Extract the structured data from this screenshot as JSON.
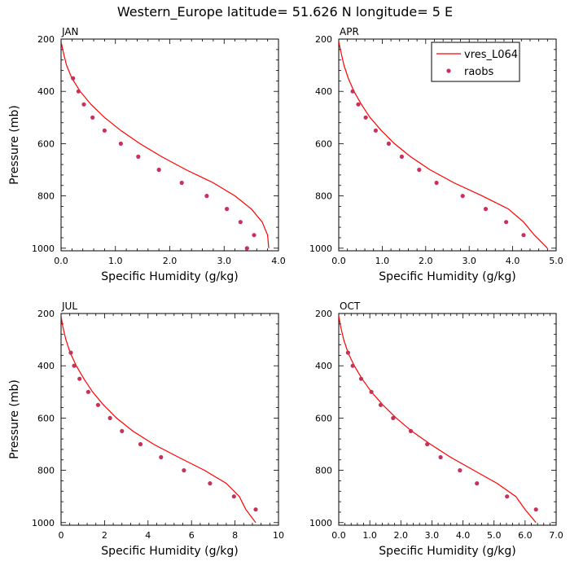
{
  "title": "Western_Europe  latitude= 51.626 N longitude= 5 E",
  "legend": {
    "model_label": "vres_L064",
    "obs_label": "raobs",
    "placement": "top-right of APR panel"
  },
  "colors": {
    "model_line": "#ff0000",
    "obs_marker": "#c8325a",
    "axes": "#000000"
  },
  "chart_data": [
    {
      "type": "line",
      "panel_label": "JAN",
      "xlabel": "Specific Humidity (g/kg)",
      "ylabel": "Pressure (mb)",
      "xlim": [
        0,
        4
      ],
      "ylim": [
        200,
        1010
      ],
      "y_inverted": true,
      "xticks": [
        0,
        1,
        2,
        3,
        4
      ],
      "xtick_labels": [
        "0.0",
        "1.0",
        "2.0",
        "3.0",
        "4.0"
      ],
      "yticks": [
        200,
        400,
        600,
        800,
        1000
      ],
      "ytick_labels": [
        "200",
        "400",
        "600",
        "800",
        "1000"
      ],
      "series": [
        {
          "name": "vres_L064",
          "kind": "line",
          "x": [
            0.0,
            0.04,
            0.1,
            0.2,
            0.35,
            0.55,
            0.8,
            1.1,
            1.45,
            1.85,
            2.3,
            2.8,
            3.2,
            3.5,
            3.7,
            3.8,
            3.82
          ],
          "y": [
            210,
            250,
            300,
            350,
            400,
            450,
            500,
            550,
            600,
            650,
            700,
            750,
            800,
            850,
            900,
            950,
            1000
          ]
        },
        {
          "name": "raobs",
          "kind": "scatter",
          "x": [
            0.22,
            0.32,
            0.42,
            0.58,
            0.8,
            1.1,
            1.42,
            1.8,
            2.22,
            2.68,
            3.05,
            3.3,
            3.55,
            3.42
          ],
          "y": [
            350,
            400,
            450,
            500,
            550,
            600,
            650,
            700,
            750,
            800,
            850,
            900,
            950,
            1000
          ]
        }
      ]
    },
    {
      "type": "line",
      "panel_label": "APR",
      "xlabel": "Specific Humidity (g/kg)",
      "ylabel": "",
      "xlim": [
        0,
        5
      ],
      "ylim": [
        200,
        1010
      ],
      "y_inverted": true,
      "xticks": [
        0,
        1,
        2,
        3,
        4,
        5
      ],
      "xtick_labels": [
        "0.0",
        "1.0",
        "2.0",
        "3.0",
        "4.0",
        "5.0"
      ],
      "yticks": [
        200,
        400,
        600,
        800,
        1000
      ],
      "ytick_labels": [
        "200",
        "400",
        "600",
        "800",
        "1000"
      ],
      "series": [
        {
          "name": "vres_L064",
          "kind": "line",
          "x": [
            0.0,
            0.05,
            0.12,
            0.22,
            0.35,
            0.52,
            0.72,
            0.98,
            1.28,
            1.65,
            2.1,
            2.65,
            3.3,
            3.9,
            4.25,
            4.5,
            4.8
          ],
          "y": [
            210,
            250,
            300,
            350,
            400,
            450,
            500,
            550,
            600,
            650,
            700,
            750,
            800,
            850,
            900,
            950,
            1000
          ]
        },
        {
          "name": "raobs",
          "kind": "scatter",
          "x": [
            0.32,
            0.45,
            0.62,
            0.85,
            1.15,
            1.45,
            1.85,
            2.25,
            2.85,
            3.38,
            3.85,
            4.25
          ],
          "y": [
            400,
            450,
            500,
            550,
            600,
            650,
            700,
            750,
            800,
            850,
            900,
            950
          ]
        }
      ]
    },
    {
      "type": "line",
      "panel_label": "JUL",
      "xlabel": "Specific Humidity (g/kg)",
      "ylabel": "Pressure (mb)",
      "xlim": [
        0,
        10
      ],
      "ylim": [
        200,
        1010
      ],
      "y_inverted": true,
      "xticks": [
        0,
        2,
        4,
        6,
        8,
        10
      ],
      "xtick_labels": [
        "0",
        "2",
        "4",
        "6",
        "8",
        "10"
      ],
      "yticks": [
        200,
        400,
        600,
        800,
        1000
      ],
      "ytick_labels": [
        "200",
        "400",
        "600",
        "800",
        "1000"
      ],
      "series": [
        {
          "name": "vres_L064",
          "kind": "line",
          "x": [
            0.0,
            0.08,
            0.22,
            0.42,
            0.7,
            1.05,
            1.45,
            1.95,
            2.55,
            3.3,
            4.25,
            5.4,
            6.6,
            7.6,
            8.2,
            8.5,
            8.95
          ],
          "y": [
            210,
            250,
            300,
            350,
            400,
            450,
            500,
            550,
            600,
            650,
            700,
            750,
            800,
            850,
            900,
            950,
            1000
          ]
        },
        {
          "name": "raobs",
          "kind": "scatter",
          "x": [
            0.45,
            0.6,
            0.85,
            1.25,
            1.7,
            2.25,
            2.8,
            3.65,
            4.6,
            5.65,
            6.85,
            7.95,
            8.95
          ],
          "y": [
            350,
            400,
            450,
            500,
            550,
            600,
            650,
            700,
            750,
            800,
            850,
            900,
            950
          ]
        }
      ]
    },
    {
      "type": "line",
      "panel_label": "OCT",
      "xlabel": "Specific Humidity (g/kg)",
      "ylabel": "",
      "xlim": [
        0,
        7
      ],
      "ylim": [
        200,
        1010
      ],
      "y_inverted": true,
      "xticks": [
        0,
        1,
        2,
        3,
        4,
        5,
        6,
        7
      ],
      "xtick_labels": [
        "0.0",
        "1.0",
        "2.0",
        "3.0",
        "4.0",
        "5.0",
        "6.0",
        "7.0"
      ],
      "yticks": [
        200,
        400,
        600,
        800,
        1000
      ],
      "ytick_labels": [
        "200",
        "400",
        "600",
        "800",
        "1000"
      ],
      "series": [
        {
          "name": "vres_L064",
          "kind": "line",
          "x": [
            0.0,
            0.06,
            0.16,
            0.3,
            0.5,
            0.75,
            1.05,
            1.42,
            1.85,
            2.35,
            2.95,
            3.6,
            4.35,
            5.1,
            5.7,
            6.0,
            6.35
          ],
          "y": [
            210,
            250,
            300,
            350,
            400,
            450,
            500,
            550,
            600,
            650,
            700,
            750,
            800,
            850,
            900,
            950,
            1000
          ]
        },
        {
          "name": "raobs",
          "kind": "scatter",
          "x": [
            0.3,
            0.45,
            0.72,
            1.05,
            1.35,
            1.75,
            2.32,
            2.85,
            3.28,
            3.9,
            4.45,
            5.42,
            6.35
          ],
          "y": [
            350,
            400,
            450,
            500,
            550,
            600,
            650,
            700,
            750,
            800,
            850,
            900,
            950
          ]
        }
      ]
    }
  ]
}
